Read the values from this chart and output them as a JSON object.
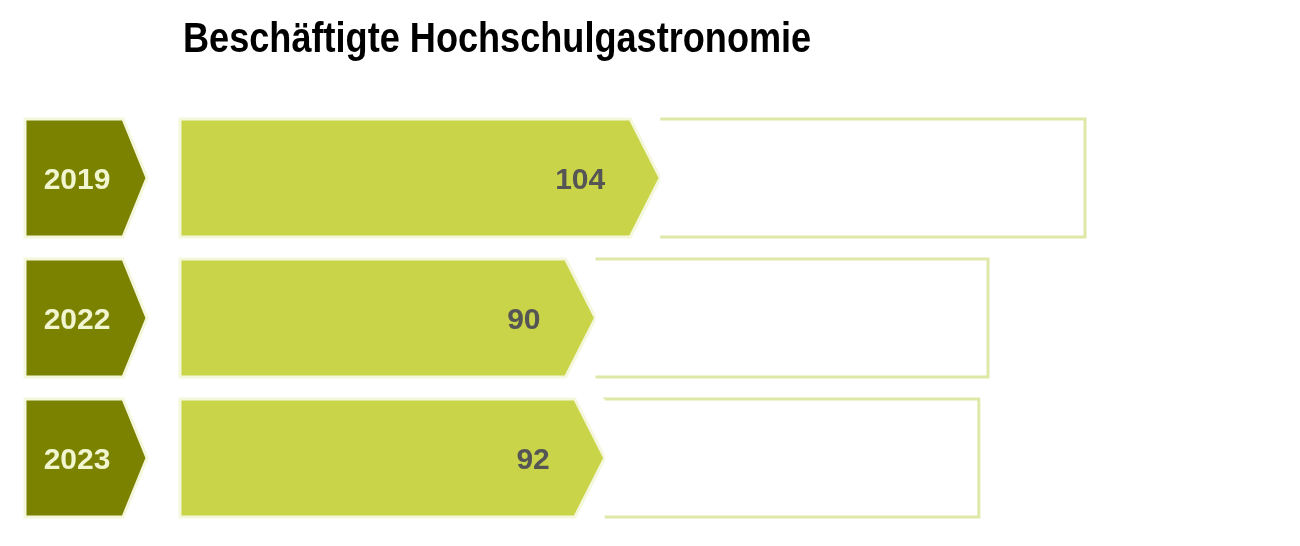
{
  "chart_data": {
    "type": "bar",
    "orientation": "horizontal",
    "stacked": true,
    "title": "Beschäftigte Hochschulgastronomie",
    "categories": [
      "2019",
      "2022",
      "2023"
    ],
    "series": [
      {
        "color": "#c9d449",
        "values": [
          104,
          90,
          92
        ],
        "value_labels": [
          "104",
          "90",
          "92"
        ]
      },
      {
        "color": "#dfe8a6",
        "values": [
          92,
          85,
          81
        ]
      }
    ]
  }
}
